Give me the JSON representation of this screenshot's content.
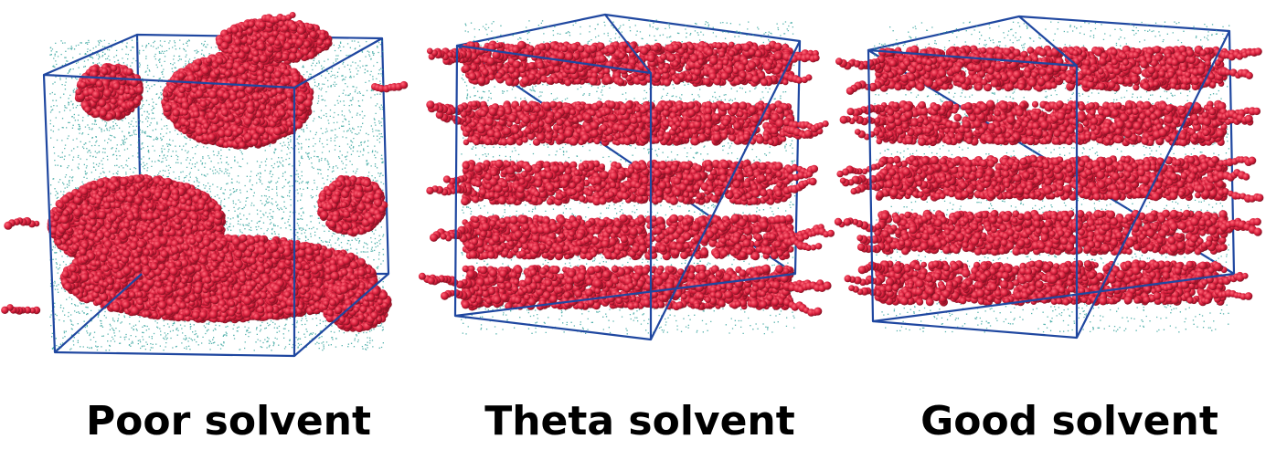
{
  "colors": {
    "background": "#ffffff",
    "box_edge": "#1f47a0",
    "polymer": "#d81e3c",
    "polymer_highlight": "#ff6a7a",
    "solvent": "#3aa6a0"
  },
  "panels": [
    {
      "id": "poor",
      "caption": "Poor solvent"
    },
    {
      "id": "theta",
      "caption": "Theta solvent"
    },
    {
      "id": "good",
      "caption": "Good solvent"
    }
  ]
}
